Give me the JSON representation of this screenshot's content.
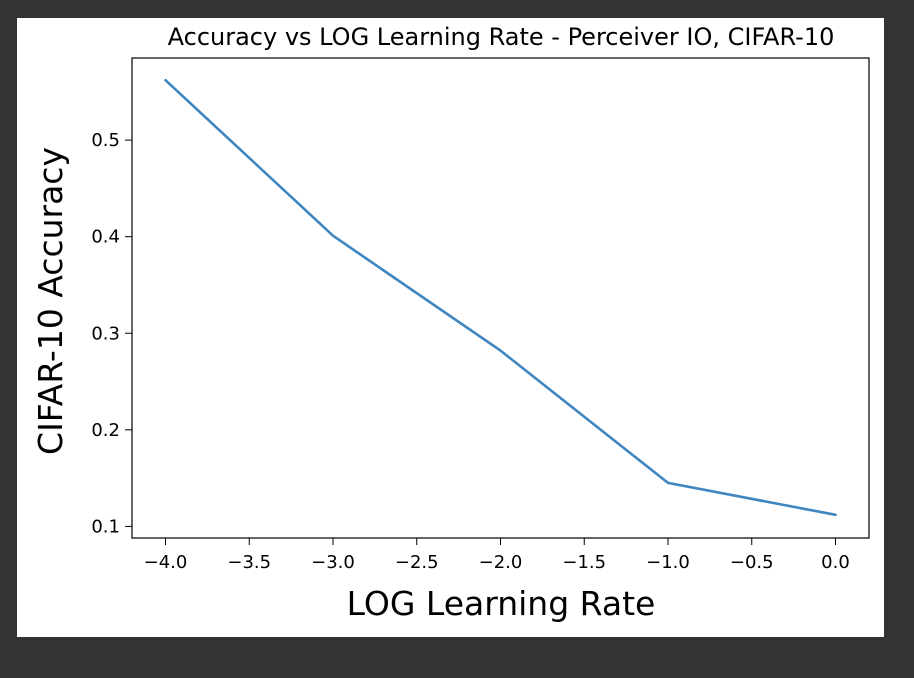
{
  "chart_data": {
    "type": "line",
    "title": "Accuracy vs LOG Learning Rate - Perceiver IO, CIFAR-10",
    "xlabel": "LOG Learning Rate",
    "ylabel": "CIFAR-10 Accuracy",
    "xlim": [
      -4.2,
      0.2
    ],
    "ylim": [
      0.088,
      0.585
    ],
    "xticks": [
      -4.0,
      -3.5,
      -3.0,
      -2.5,
      -2.0,
      -1.5,
      -1.0,
      -0.5,
      0.0
    ],
    "xtick_labels": [
      "−4.0",
      "−3.5",
      "−3.0",
      "−2.5",
      "−2.0",
      "−1.5",
      "−1.0",
      "−0.5",
      "0.0"
    ],
    "yticks": [
      0.1,
      0.2,
      0.3,
      0.4,
      0.5
    ],
    "ytick_labels": [
      "0.1",
      "0.2",
      "0.3",
      "0.4",
      "0.5"
    ],
    "grid": false,
    "series": [
      {
        "x": [
          -4,
          -3,
          -2,
          -1,
          0
        ],
        "y": [
          0.562,
          0.401,
          0.282,
          0.145,
          0.112
        ],
        "color": "#3f86c0"
      }
    ]
  }
}
